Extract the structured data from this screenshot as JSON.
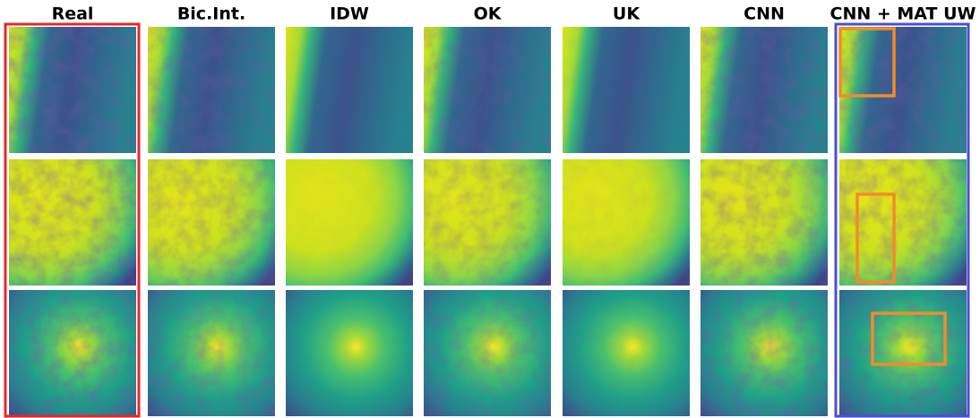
{
  "header": {
    "columns": [
      "Real",
      "Bic.Int.",
      "IDW",
      "OK",
      "UK",
      "CNN",
      "CNN + MAT UW"
    ]
  }
}
